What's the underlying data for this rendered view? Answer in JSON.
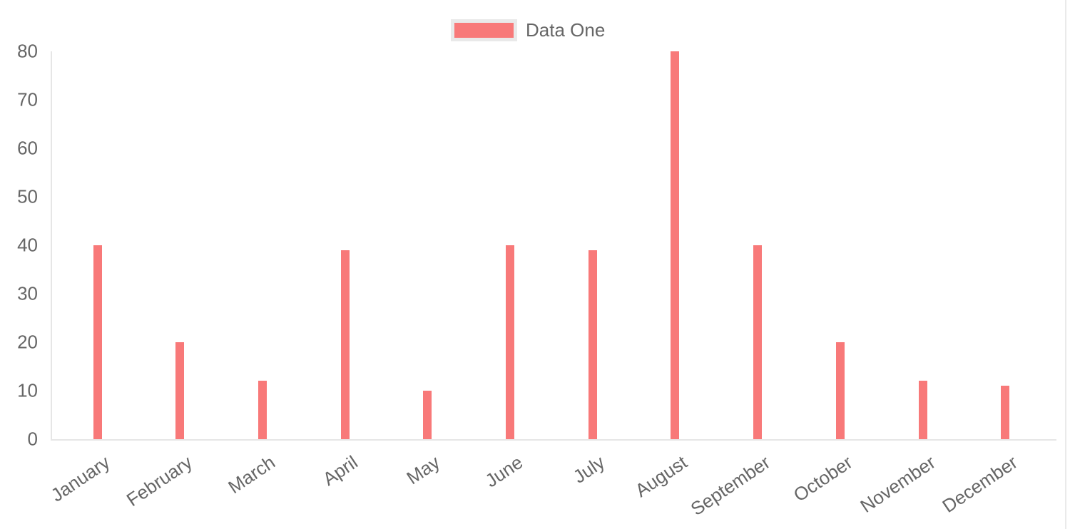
{
  "legend": {
    "label": "Data One",
    "position": "top",
    "swatch_color": "#f87979",
    "swatch_border_color": "#e9e9e9"
  },
  "colors": {
    "bar": "#f87979",
    "axis_line": "#e6e6e6",
    "tick_text": "#666666",
    "page_border": "#eaeaea",
    "background": "#ffffff"
  },
  "chart_data": {
    "type": "bar",
    "title": "",
    "xlabel": "",
    "ylabel": "",
    "categories": [
      "January",
      "February",
      "March",
      "April",
      "May",
      "June",
      "July",
      "August",
      "September",
      "October",
      "November",
      "December"
    ],
    "series": [
      {
        "name": "Data One",
        "color": "#f87979",
        "values": [
          40,
          20,
          12,
          39,
          10,
          40,
          39,
          80,
          40,
          20,
          12,
          11
        ]
      }
    ],
    "ylim": [
      0,
      80
    ],
    "yticks": [
      0,
      10,
      20,
      30,
      40,
      50,
      60,
      70,
      80
    ],
    "grid": false,
    "legend_position": "top",
    "x_label_rotation_deg": -34
  }
}
